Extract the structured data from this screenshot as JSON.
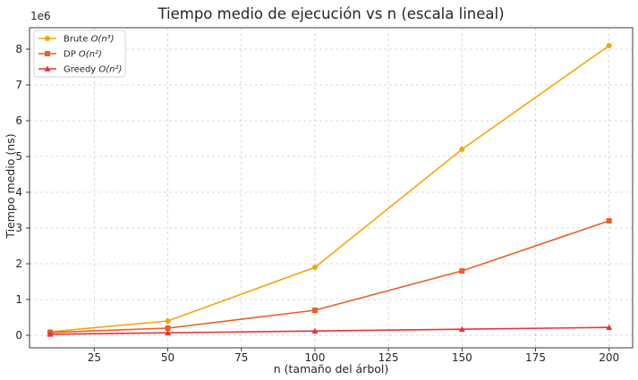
{
  "chart_data": {
    "type": "line",
    "title": "Tiempo medio de ejecución vs n (escala lineal)",
    "xlabel": "n (tamaño del árbol)",
    "ylabel": "Tiempo medio (ns)",
    "y_offset_label": "1e6",
    "xlim": [
      3,
      208
    ],
    "ylim": [
      -0.35,
      8.6
    ],
    "y_multiplier": 1000000,
    "xticks": [
      25,
      50,
      75,
      100,
      125,
      150,
      175,
      200
    ],
    "yticks": [
      0,
      1,
      2,
      3,
      4,
      5,
      6,
      7,
      8
    ],
    "grid": true,
    "legend_position": "top-left",
    "x": [
      10,
      50,
      100,
      150,
      200
    ],
    "series": [
      {
        "name": "Brute",
        "complexity": "O(n³)",
        "color": "#f5a60a",
        "marker": "circle",
        "values": [
          0.1,
          0.4,
          1.9,
          5.2,
          8.1
        ]
      },
      {
        "name": "DP",
        "complexity": "O(n²)",
        "color": "#eb5e25",
        "marker": "square",
        "values": [
          0.08,
          0.2,
          0.7,
          1.8,
          3.2
        ]
      },
      {
        "name": "Greedy",
        "complexity": "O(n²)",
        "color": "#e8323c",
        "marker": "triangle",
        "values": [
          0.03,
          0.07,
          0.12,
          0.17,
          0.22
        ]
      }
    ]
  }
}
